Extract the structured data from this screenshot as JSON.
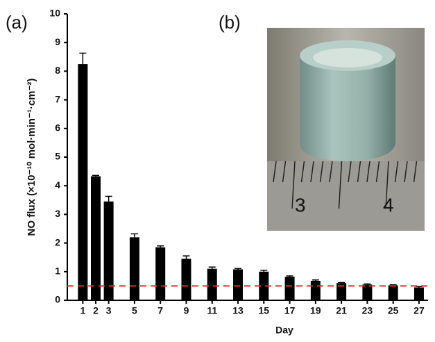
{
  "chart_data": {
    "type": "bar",
    "panel_label": "(a)",
    "x_label": "Day",
    "y_label": "NO flux (×10⁻¹⁰ mol·min⁻¹·cm⁻²)",
    "x": [
      1,
      2,
      3,
      5,
      7,
      9,
      11,
      13,
      15,
      17,
      19,
      21,
      23,
      25,
      27
    ],
    "values": [
      8.25,
      4.33,
      3.45,
      2.2,
      1.85,
      1.45,
      1.1,
      1.08,
      1.0,
      0.82,
      0.68,
      0.6,
      0.55,
      0.52,
      0.45
    ],
    "errors": [
      0.38,
      0.03,
      0.18,
      0.12,
      0.05,
      0.1,
      0.06,
      0.03,
      0.05,
      0.03,
      0.03,
      0.02,
      0.02,
      0.02,
      0.03
    ],
    "color": "#000000",
    "xlim": [
      -0.2,
      27.7
    ],
    "xticks": [
      1,
      2,
      3,
      5,
      7,
      9,
      11,
      13,
      15,
      17,
      19,
      21,
      23,
      25,
      27
    ],
    "ylim": [
      0,
      10
    ],
    "yticks": [
      0,
      1,
      2,
      3,
      4,
      5,
      6,
      7,
      8,
      9,
      10
    ],
    "reference_line": {
      "value": 0.5,
      "color": "#e8282b",
      "style": "dashed"
    }
  },
  "inset": {
    "panel_label": "(b)",
    "ruler_labels": [
      "3",
      "4"
    ]
  }
}
